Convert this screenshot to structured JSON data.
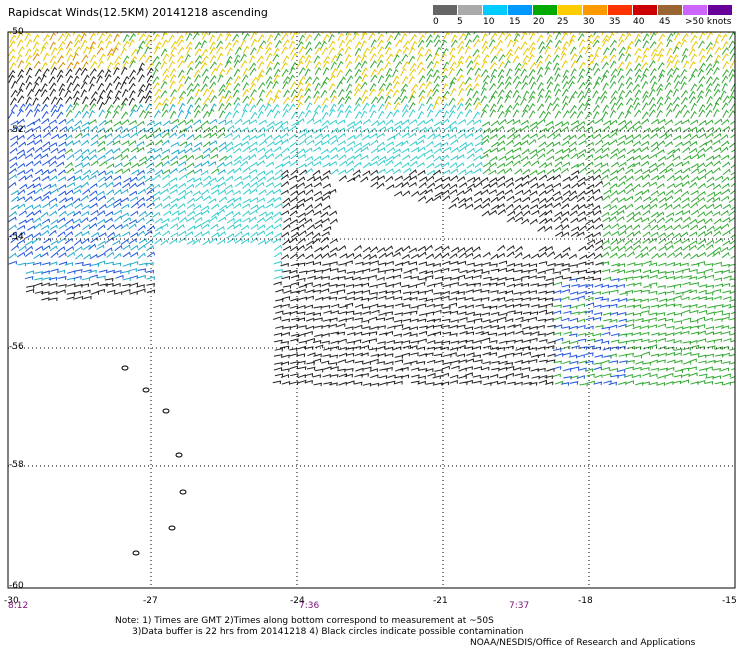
{
  "title": "Rapidscat Winds(12.5KM) 20141218 ascending",
  "legend": {
    "labels": [
      "0",
      "5",
      "10",
      "15",
      "20",
      "25",
      "30",
      "35",
      "40",
      "45",
      ">50 knots"
    ],
    "colors": [
      "#666666",
      "#aaaaaa",
      "#00ccff",
      "#0099ff",
      "#00aa00",
      "#ffcc00",
      "#ff9900",
      "#ff3300",
      "#cc0000",
      "#996633",
      "#cc66ff",
      "#660099"
    ]
  },
  "map": {
    "lat_labels": [
      "-50",
      "-52",
      "-54",
      "-56",
      "-58",
      "-60"
    ],
    "lon_labels": [
      "-30",
      "-27",
      "-24",
      "-21",
      "-18",
      "-15"
    ],
    "time_labels": [
      "8:12",
      "7:36",
      "7:37"
    ]
  },
  "notes": {
    "line1": "Note: 1) Times are GMT 2)Times along bottom correspond to measurement at ~50S",
    "line2": "      3)Data buffer is 22 hrs from 20141218 4) Black circles indicate possible contamination"
  },
  "credit": "NOAA/NESDIS/Office of Research and Applications"
}
